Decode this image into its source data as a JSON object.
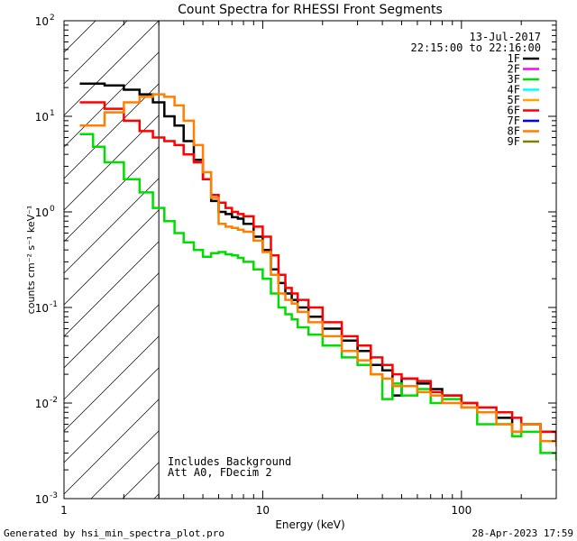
{
  "chart_data": {
    "type": "line",
    "title": "Count Spectra for RHESSI Front Segments",
    "xlabel": "Energy (keV)",
    "ylabel": "counts cm⁻² s⁻¹ keV⁻¹",
    "x_scale": "log",
    "y_scale": "log",
    "xlim": [
      1,
      300
    ],
    "ylim": [
      0.001,
      100
    ],
    "x_ticks": [
      {
        "value": 1,
        "label": "1"
      },
      {
        "value": 10,
        "label": "10"
      },
      {
        "value": 100,
        "label": "100"
      }
    ],
    "y_ticks": [
      {
        "value": 0.001,
        "base": "10",
        "exp": "-3"
      },
      {
        "value": 0.01,
        "base": "10",
        "exp": "-2"
      },
      {
        "value": 0.1,
        "base": "10",
        "exp": "-1"
      },
      {
        "value": 1,
        "base": "10",
        "exp": "0"
      },
      {
        "value": 10,
        "base": "10",
        "exp": "1"
      },
      {
        "value": 100,
        "base": "10",
        "exp": "2"
      }
    ],
    "excluded_region": {
      "from": 1,
      "to": 3,
      "style": "hatched"
    },
    "date": "13-Jul-2017",
    "time_range": "22:15:00 to 22:16:00",
    "annotations": [
      "Includes Background",
      "Att A0, FDecim 2"
    ],
    "legend_position": "top-right",
    "series": [
      {
        "name": "1F",
        "color": "#000000",
        "x": [
          1.2,
          1.6,
          2.0,
          2.4,
          2.8,
          3.2,
          3.6,
          4.0,
          4.5,
          5.0,
          5.5,
          6.0,
          6.5,
          7.0,
          7.5,
          8.0,
          9.0,
          10,
          11,
          12,
          13,
          14,
          15,
          17,
          20,
          25,
          30,
          35,
          40,
          45,
          50,
          60,
          70,
          80,
          100,
          120,
          150,
          180,
          200,
          250,
          300
        ],
        "y": [
          22,
          21,
          19,
          17,
          14,
          10,
          8,
          5.5,
          3.5,
          2.2,
          1.3,
          1.0,
          0.95,
          0.88,
          0.85,
          0.75,
          0.55,
          0.4,
          0.25,
          0.18,
          0.14,
          0.12,
          0.1,
          0.08,
          0.06,
          0.045,
          0.035,
          0.025,
          0.022,
          0.012,
          0.018,
          0.016,
          0.014,
          0.012,
          0.01,
          0.008,
          0.007,
          0.005,
          0.006,
          0.005,
          0.004
        ]
      },
      {
        "name": "2F",
        "color": "#ff00ff",
        "x": [],
        "y": []
      },
      {
        "name": "3F",
        "color": "#00dd00",
        "x": [
          1.2,
          1.4,
          1.6,
          2.0,
          2.4,
          2.8,
          3.2,
          3.6,
          4.0,
          4.5,
          5.0,
          5.5,
          6.0,
          6.5,
          7.0,
          7.5,
          8.0,
          9.0,
          10,
          11,
          12,
          13,
          14,
          15,
          17,
          20,
          25,
          30,
          35,
          40,
          45,
          50,
          60,
          70,
          80,
          100,
          120,
          150,
          180,
          200,
          250,
          300
        ],
        "y": [
          6.5,
          4.8,
          3.3,
          2.2,
          1.6,
          1.1,
          0.8,
          0.6,
          0.48,
          0.4,
          0.34,
          0.37,
          0.38,
          0.36,
          0.35,
          0.33,
          0.3,
          0.25,
          0.2,
          0.14,
          0.1,
          0.085,
          0.075,
          0.062,
          0.052,
          0.04,
          0.03,
          0.025,
          0.02,
          0.011,
          0.016,
          0.012,
          0.014,
          0.01,
          0.011,
          0.009,
          0.006,
          0.006,
          0.0045,
          0.005,
          0.003,
          0.0025
        ]
      },
      {
        "name": "4F",
        "color": "#00ffff",
        "x": [],
        "y": []
      },
      {
        "name": "5F",
        "color": "#ffa500",
        "x": [],
        "y": []
      },
      {
        "name": "6F",
        "color": "#ff0000",
        "x": [
          1.2,
          1.6,
          2.0,
          2.4,
          2.8,
          3.2,
          3.6,
          4.0,
          4.5,
          5.0,
          5.5,
          6.0,
          6.5,
          7.0,
          7.5,
          8.0,
          9.0,
          10,
          11,
          12,
          13,
          14,
          15,
          17,
          20,
          25,
          30,
          35,
          40,
          45,
          50,
          60,
          70,
          80,
          100,
          120,
          150,
          180,
          200,
          250,
          300
        ],
        "y": [
          14,
          12,
          9,
          7,
          6,
          5.5,
          5,
          4.0,
          3.3,
          2.2,
          1.5,
          1.25,
          1.1,
          1.0,
          0.95,
          0.9,
          0.7,
          0.55,
          0.35,
          0.22,
          0.16,
          0.14,
          0.12,
          0.1,
          0.07,
          0.05,
          0.04,
          0.03,
          0.025,
          0.02,
          0.018,
          0.017,
          0.013,
          0.012,
          0.01,
          0.009,
          0.008,
          0.007,
          0.006,
          0.005,
          0.004
        ]
      },
      {
        "name": "7F",
        "color": "#0000ff",
        "x": [],
        "y": []
      },
      {
        "name": "8F",
        "color": "#ff7f00",
        "x": [
          1.2,
          1.6,
          2.0,
          2.4,
          2.8,
          3.2,
          3.6,
          4.0,
          4.5,
          5.0,
          5.5,
          6.0,
          6.5,
          7.0,
          7.5,
          8.0,
          9.0,
          10,
          11,
          12,
          13,
          14,
          15,
          17,
          20,
          25,
          30,
          35,
          40,
          45,
          50,
          60,
          70,
          80,
          100,
          120,
          150,
          180,
          200,
          250,
          300
        ],
        "y": [
          8,
          11,
          14,
          16,
          17,
          16,
          13,
          9,
          5,
          2.6,
          1.4,
          0.75,
          0.7,
          0.68,
          0.65,
          0.62,
          0.5,
          0.38,
          0.22,
          0.14,
          0.12,
          0.11,
          0.09,
          0.07,
          0.05,
          0.035,
          0.028,
          0.02,
          0.018,
          0.015,
          0.015,
          0.013,
          0.012,
          0.01,
          0.009,
          0.008,
          0.006,
          0.005,
          0.006,
          0.004,
          0.0035
        ]
      },
      {
        "name": "9F",
        "color": "#808000",
        "x": [],
        "y": []
      }
    ]
  },
  "footer": {
    "generated_by": "Generated by hsi_min_spectra_plot.pro",
    "timestamp": "28-Apr-2023 17:59"
  }
}
